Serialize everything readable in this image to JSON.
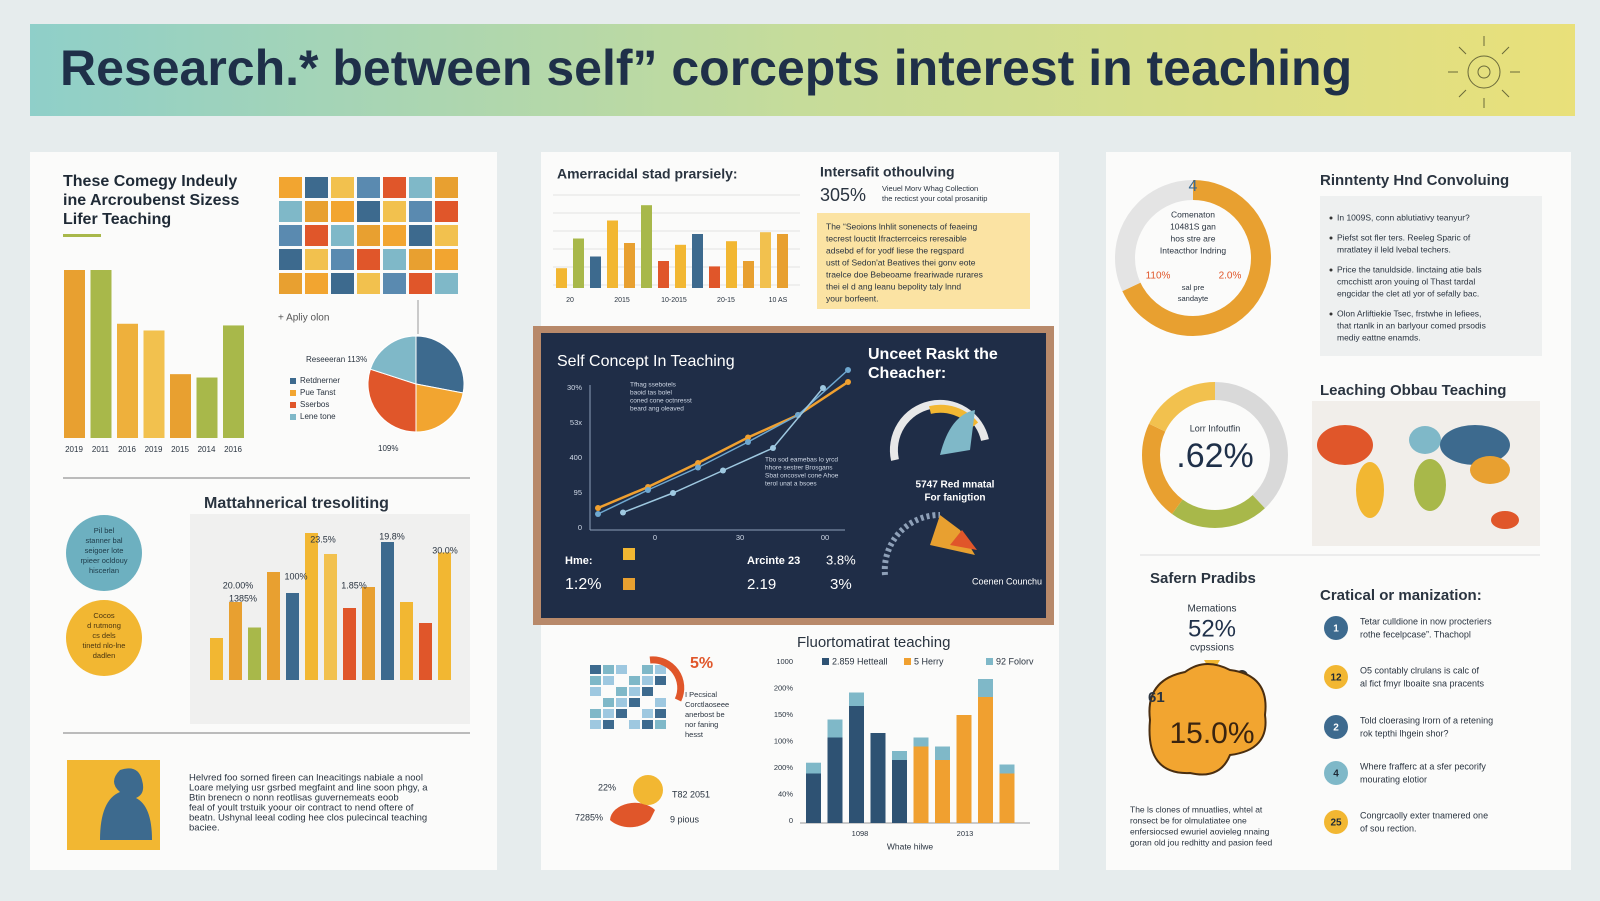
{
  "banner": {
    "title": "Research.* between self” corcepts interest in teaching"
  },
  "left": {
    "heading": [
      "These Comegy Indeuly",
      "ine Arcroubenst Sizess",
      "Lifer Teaching"
    ],
    "bars": {
      "labels": [
        "2019",
        "2011",
        "2016",
        "2019",
        "2015",
        "2014",
        "2016"
      ],
      "values": [
        100,
        100,
        68,
        64,
        38,
        36,
        67
      ],
      "colors": [
        "#e8a030",
        "#a8b84a",
        "#eeb03c",
        "#f2c14e",
        "#e8a030",
        "#a8b84a",
        "#a8b84a"
      ]
    },
    "grid_note": "+ Apliy olon",
    "pie": {
      "title": "Reseeeran 113%",
      "legend": [
        "Retdnerner",
        "Pue Tanst",
        "Sserbos",
        "Lene tone"
      ],
      "footer": "109%",
      "values": [
        28,
        22,
        30,
        20
      ],
      "colors": [
        "#3d6a8e",
        "#f2a530",
        "#e0562a",
        "#7fb8c8"
      ]
    },
    "chart": {
      "title": "Mattahnerical tresoliting",
      "labels": [
        "20.00%",
        "1385%",
        "100%",
        "23.5%",
        "1.85%",
        "19.8%",
        "30.0%"
      ],
      "values": [
        28,
        52,
        35,
        72,
        58,
        98,
        84,
        48,
        62,
        92,
        52,
        38,
        85
      ],
      "colors": [
        "#f2b732",
        "#e8a030",
        "#a8b84a",
        "#e8a030",
        "#3d6a8e",
        "#f2b732",
        "#f2c14e",
        "#e0562a",
        "#e8a030",
        "#3d6a8e",
        "#f2b732",
        "#e0562a",
        "#f2b732"
      ]
    },
    "circles": [
      [
        "Pil bel",
        "stanner bal",
        "seigoer lote",
        "rpieer ocldouy",
        "hiscerlan"
      ],
      [
        "Cocos",
        "d rutmong",
        "cs dels",
        "tinetd nlo-lne",
        "dadlen"
      ]
    ],
    "text": [
      "Helvred foo sorned fireen can lneacitings nabiale a nool",
      "Loare melying usr gsrbed megfaint and line soon phgy, a",
      "Btin brenecn o nonn reotlisas guvernemeats eoob",
      "feal of yoult trstuik yoour oir contract to nend oftere of",
      "beatn. Ushynal leeal coding hee clos pulecincal teaching",
      "baciee."
    ]
  },
  "mid": {
    "chart": {
      "title": "Amerracidal stad prarsiely:",
      "values": [
        22,
        55,
        35,
        75,
        50,
        92,
        30,
        48,
        60,
        24,
        52,
        30,
        62,
        60
      ],
      "colors": [
        "#f2b732",
        "#a8b84a",
        "#3d6a8e",
        "#f2b732",
        "#e8a030",
        "#a8b84a",
        "#e0562a",
        "#f2b732",
        "#3d6a8e",
        "#e0562a",
        "#f2b732",
        "#e8a030",
        "#f2c14e",
        "#e8a030"
      ],
      "labels": [
        "20",
        "2015",
        "10-2015",
        "20-15",
        "10 AS"
      ]
    },
    "stat": {
      "title": "Intersafit othoulving",
      "value": "305%",
      "note": [
        "Vieuel Morv Whag Collection",
        "the recticst your cotal prosanitip"
      ]
    },
    "box": [
      "The “Seoions lnhlit sonenects of feaeing",
      "tecrest louctit Ifracterrceics reresaible",
      "adsebd ef for yodf liese the regspard",
      "ustt of Sedon'at Beatives thei gonv eote",
      "traelce doe Bebeoame freariwade rurares",
      "thei el d ang leanu bepolity taly lnnd",
      "your borfeent."
    ],
    "dark": {
      "title": "Self Concept In Teaching",
      "ylabels": [
        "30%",
        "53x",
        "400",
        "95",
        "0"
      ],
      "xlabels": [
        "0",
        "30",
        "00"
      ],
      "lines": [
        {
          "color": "#f0a030",
          "x": [
            0,
            2,
            4,
            6,
            8,
            10
          ],
          "y": [
            8,
            22,
            38,
            55,
            70,
            92
          ]
        },
        {
          "color": "#6fa8d0",
          "x": [
            0,
            2,
            4,
            6,
            8,
            10
          ],
          "y": [
            4,
            20,
            35,
            52,
            70,
            100
          ]
        },
        {
          "color": "#9ec8e0",
          "x": [
            1,
            3,
            5,
            7,
            9
          ],
          "y": [
            5,
            18,
            33,
            48,
            88
          ]
        }
      ],
      "note": [
        "Tfhag ssebotels",
        "baoid tas bolel",
        "coned cone octnresst",
        "beard ang oleaved"
      ],
      "note2": [
        "Tbo sod eamebas lo yrcd",
        "hhore sestrer Brosgans",
        "Sbat oncosvel cone Ahoe",
        "terol unat a bsoes"
      ],
      "right_title": [
        "Unceet Raskt the",
        "Cheacher:"
      ],
      "gauge": [
        "5747 Red mnatal",
        "For fanigtion"
      ],
      "footer": "Coenen Counchu",
      "stats": {
        "a": "Hme:",
        "b": "1:2%",
        "c": "Arcinte 23",
        "d": "3.8%",
        "e": "2.19",
        "f": "3%"
      }
    },
    "small": {
      "pct": "5%",
      "lines": [
        "I Pecsical",
        "Corctlaoseee",
        "anerbost be",
        "nor faning",
        "hesst"
      ],
      "a": "22%",
      "b": "7285%",
      "c": "T82 2051",
      "d": "9 pious"
    },
    "stack": {
      "title": "Fluortomatirat teaching",
      "ylabels": [
        "1000",
        "200%",
        "150%",
        "100%",
        "200%",
        "40%",
        "0"
      ],
      "xlabels": [
        "1098",
        "2013"
      ],
      "xtitle": "Whate hilwe",
      "series": [
        {
          "name": "2.859 Hetteall",
          "color": "#2e5273",
          "values": [
            55,
            95,
            130,
            100,
            70,
            0,
            0,
            0,
            0,
            0
          ]
        },
        {
          "name": "5 Herry",
          "color": "#f0a030",
          "values": [
            0,
            0,
            0,
            0,
            0,
            85,
            70,
            120,
            140,
            55
          ]
        },
        {
          "name": "92 Folorv",
          "color": "#7fb8c8",
          "values": [
            12,
            20,
            15,
            0,
            10,
            10,
            15,
            0,
            20,
            10
          ]
        }
      ]
    }
  },
  "right": {
    "donut": {
      "top": "4",
      "lines": [
        "Comenaton",
        "10481S gan",
        "hos stre are",
        "Inteacthor Indring"
      ],
      "left": "110%",
      "mid": "sal pre",
      "right": "2.0%",
      "bottom": "sandayte",
      "values": [
        68,
        32
      ],
      "colors": [
        "#e8a030",
        "#e4e4e4"
      ]
    },
    "list": {
      "title": "Rinntenty Hnd Convoluing",
      "items": [
        [
          "In 1009S, conn ablutiativy teanyur?"
        ],
        [
          "Piefst sot fler ters. Reeleg Sparic of",
          "mratlatey il leld lvebal techers."
        ],
        [
          "Price the tanuldside. linctaing atie bals",
          "cmcchistt aron youing ol Thast tardal",
          "engcidar the clet atl yor of sefally bac."
        ],
        [
          "Olon Arliftiekie Tsec, frstwhe in lefiees,",
          "that rtanlk in an barlyour comed prsodis",
          "mediy eattne enamds."
        ]
      ]
    },
    "donut2": {
      "label": "Lorr Infoutfin",
      "value": ".62%",
      "values": [
        38,
        22,
        22,
        18
      ],
      "colors": [
        "#d9d9d9",
        "#a8b84a",
        "#e8a030",
        "#f2c14e"
      ]
    },
    "map": {
      "title": "Leaching Obbau Teaching"
    },
    "safe": {
      "title": "Safern Pradibs",
      "top": "Memations",
      "pct": "52%",
      "sub": "cvpssions",
      "brain": "15.0%",
      "side": "61",
      "caption": [
        "The ls clones of mnuatlies, whtel at",
        "ronsect be for olmulatiatee one",
        "enfersiocsed ewuriel aovieleg nnaing",
        "goran old jou redhitty and pasion feed"
      ]
    },
    "crit": {
      "title": "Cratical or manization:",
      "items": [
        {
          "n": "1",
          "color": "#3d6a8e",
          "lines": [
            "Tetar culldione in now procteriers",
            "rothe fecelpcase”. Thachopl"
          ]
        },
        {
          "n": "12",
          "color": "#f2b732",
          "lines": [
            "O5 contably clrulans is calc of",
            "al fict fmyr lboaite sna pracents"
          ]
        },
        {
          "n": "2",
          "color": "#3d6a8e",
          "lines": [
            "Told cloerasing lrorn of a retening",
            "rok tepthi lhgein shor?"
          ]
        },
        {
          "n": "4",
          "color": "#7fb8c8",
          "lines": [
            "Where frafferc at a sfer pecorify",
            "mourating elotior"
          ]
        },
        {
          "n": "25",
          "color": "#f2b732",
          "lines": [
            "Congrcaolly exter tnamered one",
            "of sou rection."
          ]
        }
      ]
    }
  }
}
